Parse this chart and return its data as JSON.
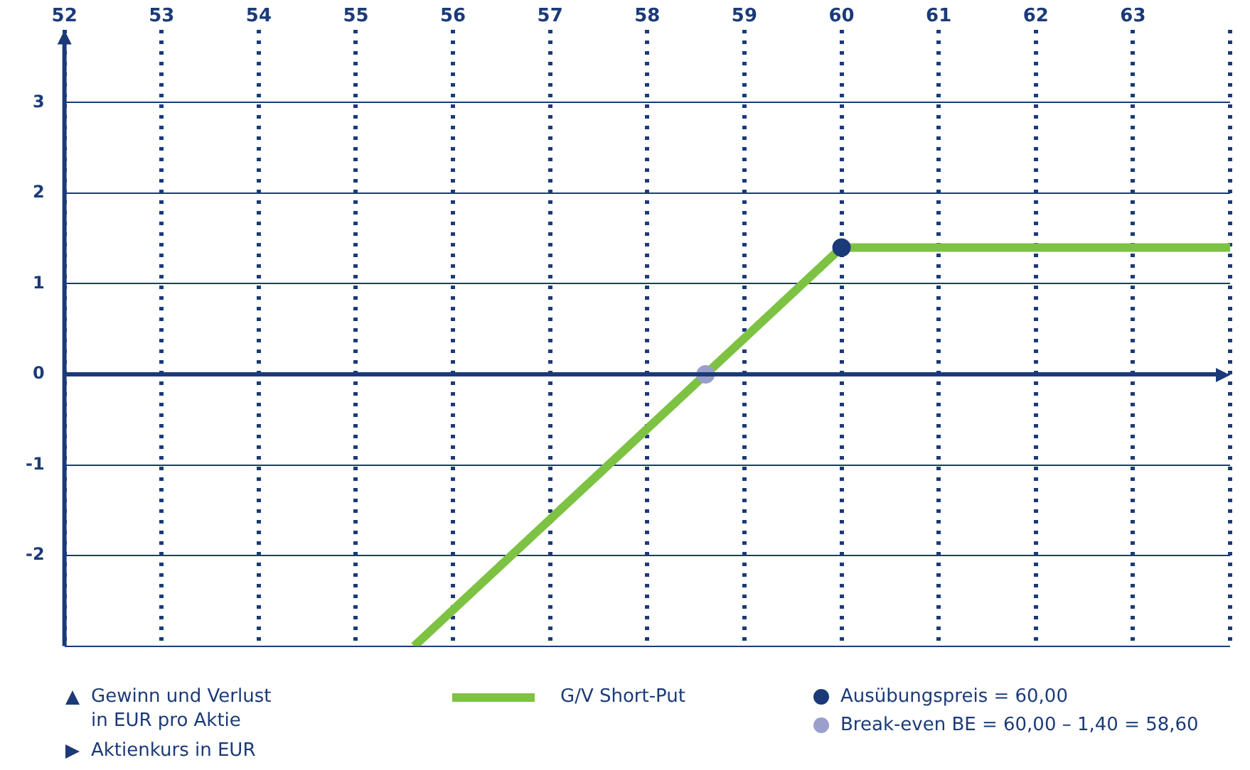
{
  "chart_data": {
    "type": "line",
    "annotations": [
      "Gewinn und Verlust in EUR pro Aktie",
      "Aktienkurs in EUR"
    ],
    "ref_lines": [
      {
        "axis": "y",
        "value": 0,
        "color": "#1b3a78"
      }
    ],
    "xlim": [
      52,
      64
    ],
    "xticks": [
      52,
      53,
      54,
      55,
      56,
      57,
      58,
      59,
      60,
      61,
      62,
      63,
      {
        "value": 64,
        "label": null
      }
    ],
    "ylim": [
      -3,
      3.8
    ],
    "yticks": [
      {
        "value": -3,
        "label": null
      },
      -2,
      -1,
      0,
      1,
      2,
      3
    ],
    "grid": true,
    "legend": "bottom",
    "marker": "none",
    "line_style": "solid",
    "series": [
      {
        "name": "G/V Short-Put",
        "color": "#7dc242",
        "x": [
          55.6,
          60,
          64
        ],
        "values": [
          -3,
          1.4,
          1.4
        ]
      },
      {
        "name": "Ausübungspreis = 60,00",
        "type": "scatter",
        "marker": "circle",
        "color": "#1b3a78",
        "x": [
          60
        ],
        "values": [
          1.4
        ]
      },
      {
        "name": "Break-even BE = 60,00 – 1,40 = 58,60",
        "type": "scatter",
        "marker": "circle",
        "color": "#9a9fcb",
        "x": [
          58.6
        ],
        "values": [
          0
        ]
      }
    ]
  }
}
